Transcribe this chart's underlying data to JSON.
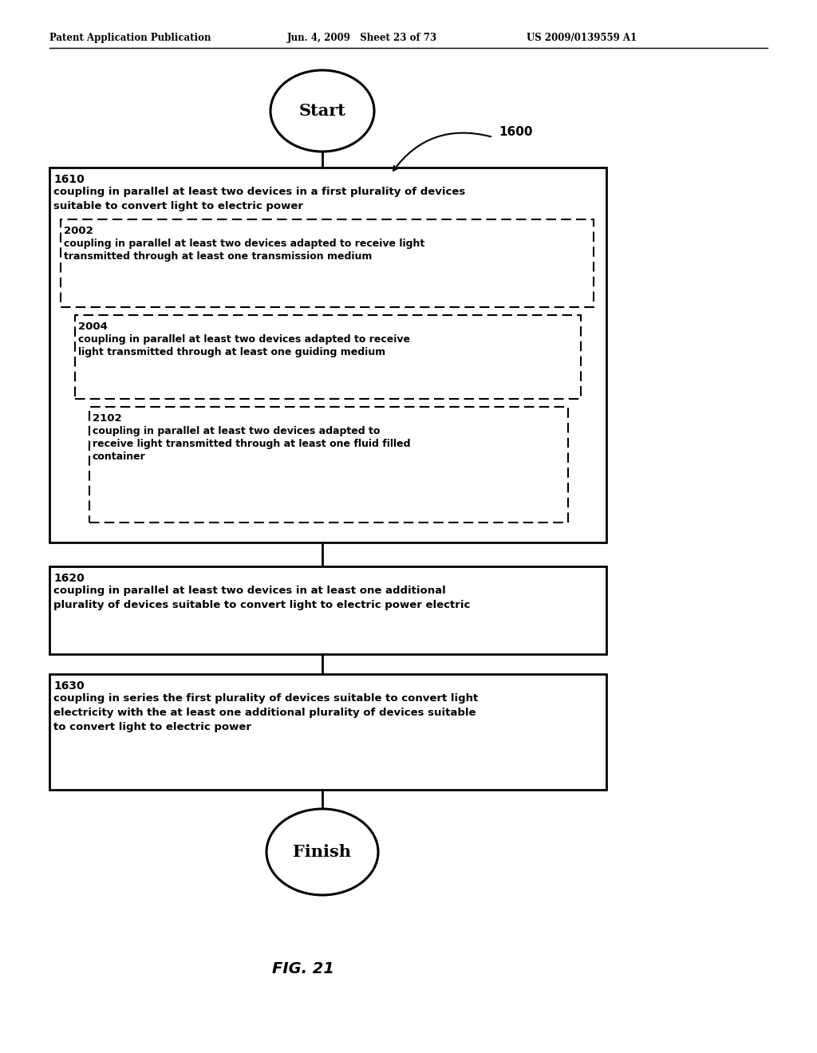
{
  "header_left": "Patent Application Publication",
  "header_mid": "Jun. 4, 2009   Sheet 23 of 73",
  "header_right": "US 2009/0139559 A1",
  "start_label": "Start",
  "finish_label": "Finish",
  "figure_label": "FIG. 21",
  "ref_number": "1600",
  "box1610_id": "1610",
  "box1610_line1": "coupling in parallel at least two devices in a first plurality of devices",
  "box1610_line2": "suitable to convert light to electric power",
  "box2002_id": "2002",
  "box2002_line1": "coupling in parallel at least two devices adapted to receive light",
  "box2002_line2": "transmitted through at least one transmission medium",
  "box2004_id": "2004",
  "box2004_line1": "coupling in parallel at least two devices adapted to receive",
  "box2004_line2": "light transmitted through at least one guiding medium",
  "box2102_id": "2102",
  "box2102_line1": "coupling in parallel at least two devices adapted to",
  "box2102_line2": "receive light transmitted through at least one fluid filled",
  "box2102_line3": "container",
  "box1620_id": "1620",
  "box1620_line1": "coupling in parallel at least two devices in at least one additional",
  "box1620_line2": "plurality of devices suitable to convert light to electric power electric",
  "box1630_id": "1630",
  "box1630_line1": "coupling in series the first plurality of devices suitable to convert light",
  "box1630_line2": "electricity with the at least one additional plurality of devices suitable",
  "box1630_line3": "to convert light to electric power",
  "bg_color": "#ffffff",
  "text_color": "#000000"
}
